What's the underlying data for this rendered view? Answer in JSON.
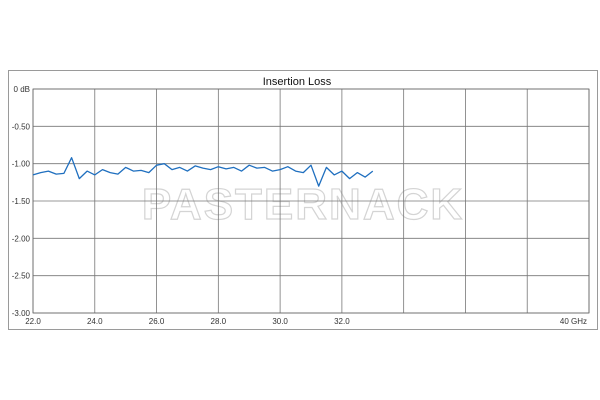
{
  "chart_data": {
    "type": "line",
    "title": "Insertion Loss",
    "x_unit": "GHz",
    "y_unit": "dB",
    "xlim": [
      22.0,
      40.0
    ],
    "ylim": [
      -3.0,
      0.0
    ],
    "x_ticks": [
      "22.0",
      "24.0",
      "26.0",
      "28.0",
      "30.0",
      "32.0"
    ],
    "x_last_label": "40 GHz",
    "y_ticks": [
      "0 dB",
      "-0.50",
      "-1.00",
      "-1.50",
      "-2.00",
      "-2.50",
      "-3.00"
    ],
    "grid": true,
    "series": [
      {
        "color": "#1f6fbf",
        "x": [
          22.0,
          22.25,
          22.5,
          22.75,
          23.0,
          23.25,
          23.5,
          23.75,
          24.0,
          24.25,
          24.5,
          24.75,
          25.0,
          25.25,
          25.5,
          25.75,
          26.0,
          26.25,
          26.5,
          26.75,
          27.0,
          27.25,
          27.5,
          27.75,
          28.0,
          28.25,
          28.5,
          28.75,
          29.0,
          29.25,
          29.5,
          29.75,
          30.0,
          30.25,
          30.5,
          30.75,
          31.0,
          31.25,
          31.5,
          31.75,
          32.0,
          32.25,
          32.5,
          32.75,
          33.0
        ],
        "y": [
          -1.15,
          -1.12,
          -1.1,
          -1.14,
          -1.13,
          -0.92,
          -1.2,
          -1.1,
          -1.15,
          -1.08,
          -1.12,
          -1.14,
          -1.05,
          -1.1,
          -1.09,
          -1.12,
          -1.02,
          -1.0,
          -1.08,
          -1.05,
          -1.1,
          -1.03,
          -1.06,
          -1.08,
          -1.04,
          -1.07,
          -1.05,
          -1.1,
          -1.02,
          -1.06,
          -1.05,
          -1.1,
          -1.08,
          -1.04,
          -1.1,
          -1.12,
          -1.02,
          -1.3,
          -1.05,
          -1.15,
          -1.1,
          -1.2,
          -1.12,
          -1.18,
          -1.1
        ]
      }
    ]
  },
  "watermark": "PASTERNACK"
}
